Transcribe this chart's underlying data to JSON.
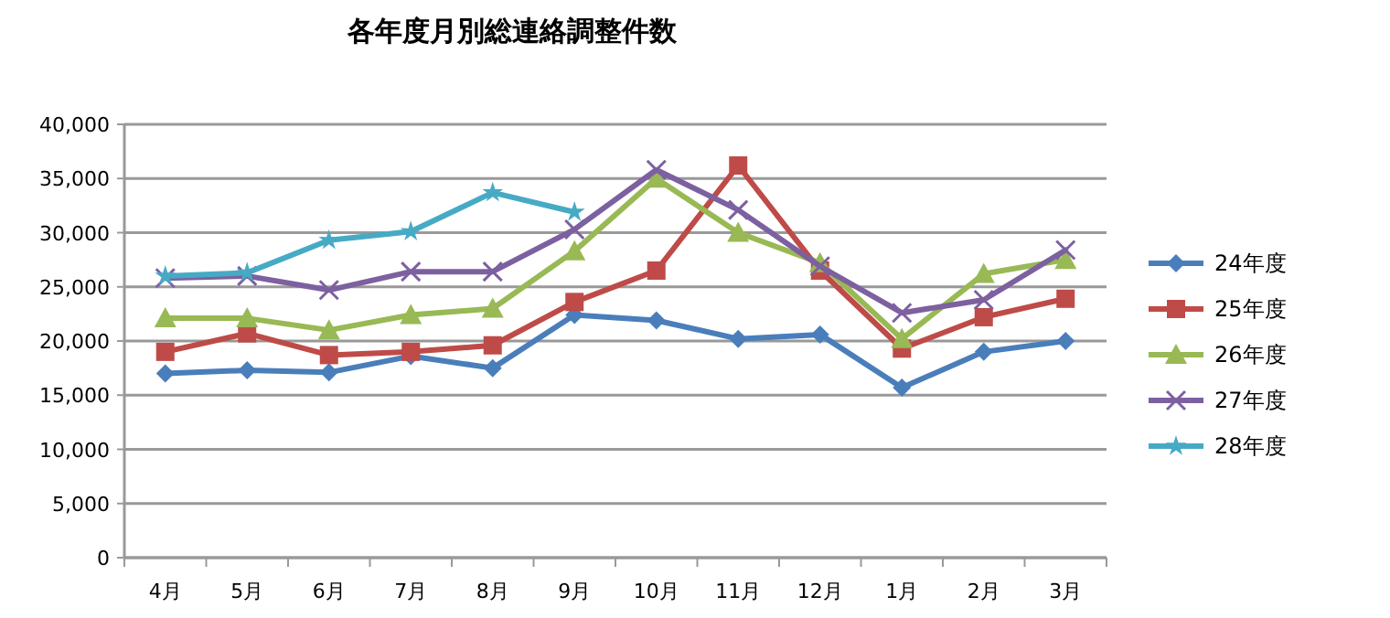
{
  "chart_data": {
    "type": "line",
    "title": "各年度月別総連絡調整件数",
    "categories": [
      "4月",
      "5月",
      "6月",
      "7月",
      "8月",
      "9月",
      "10月",
      "11月",
      "12月",
      "1月",
      "2月",
      "3月"
    ],
    "ylim": [
      0,
      40000
    ],
    "yticks": [
      {
        "value": 0,
        "label": "0"
      },
      {
        "value": 5000,
        "label": "5,000"
      },
      {
        "value": 10000,
        "label": "10,000"
      },
      {
        "value": 15000,
        "label": "15,000"
      },
      {
        "value": 20000,
        "label": "20,000"
      },
      {
        "value": 25000,
        "label": "25,000"
      },
      {
        "value": 30000,
        "label": "30,000"
      },
      {
        "value": 35000,
        "label": "35,000"
      },
      {
        "value": 40000,
        "label": "40,000"
      }
    ],
    "grid": "y",
    "legend": "right",
    "series": [
      {
        "name": "24年度",
        "color": "#4a7ebb",
        "marker": "diamond",
        "values": [
          17000,
          17300,
          17100,
          18600,
          17500,
          22400,
          21900,
          20200,
          20600,
          15700,
          19000,
          20000
        ]
      },
      {
        "name": "25年度",
        "color": "#be4b48",
        "marker": "square",
        "values": [
          19000,
          20700,
          18700,
          19000,
          19600,
          23600,
          26500,
          36200,
          26500,
          19300,
          22200,
          23900
        ]
      },
      {
        "name": "26年度",
        "color": "#98b954",
        "marker": "triangle",
        "values": [
          22100,
          22100,
          21000,
          22400,
          23000,
          28300,
          35000,
          30000,
          27200,
          20200,
          26200,
          27500
        ]
      },
      {
        "name": "27年度",
        "color": "#7d60a0",
        "marker": "cross",
        "values": [
          25800,
          26000,
          24700,
          26400,
          26400,
          30300,
          35800,
          32100,
          26900,
          22600,
          23800,
          28400
        ]
      },
      {
        "name": "28年度",
        "color": "#46aac5",
        "marker": "star",
        "values": [
          26000,
          26300,
          29300,
          30100,
          33700,
          31900,
          null,
          null,
          null,
          null,
          null,
          null
        ]
      }
    ]
  }
}
